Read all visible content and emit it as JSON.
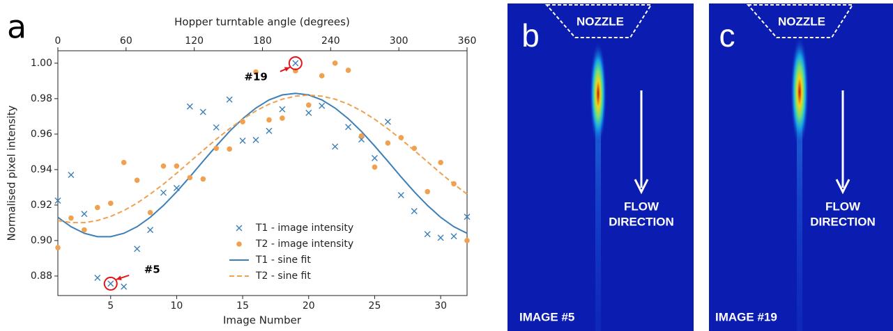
{
  "panel_label": "a",
  "chart_data": {
    "type": "scatter",
    "x_label": "Image Number",
    "y_label": "Normalised pixel intensity",
    "x2_label": "Hopper turntable angle (degrees)",
    "x": [
      1,
      2,
      3,
      4,
      5,
      6,
      7,
      8,
      9,
      10,
      11,
      12,
      13,
      14,
      15,
      16,
      17,
      18,
      19,
      20,
      21,
      22,
      23,
      24,
      25,
      26,
      27,
      28,
      29,
      30,
      31,
      32
    ],
    "xlim": [
      1,
      32
    ],
    "xticks": [
      5,
      10,
      15,
      20,
      25,
      30
    ],
    "x2lim": [
      0,
      360
    ],
    "x2ticks": [
      0,
      60,
      120,
      180,
      240,
      300,
      360
    ],
    "ylim": [
      0.869,
      1.007
    ],
    "yticks": [
      0.88,
      {
        "value": 0.9,
        "label": "0.90"
      },
      0.92,
      0.94,
      0.96,
      0.98,
      {
        "value": 1,
        "label": "1.00"
      }
    ],
    "legend": "lower center",
    "series": [
      {
        "name": "T1 - image intensity",
        "type": "scatter",
        "marker": "x",
        "color": "#3b7fb8",
        "values": [
          0.9225,
          0.937,
          0.915,
          0.879,
          0.8757,
          0.874,
          0.8953,
          0.906,
          0.927,
          0.9296,
          0.9756,
          0.9725,
          0.9638,
          0.9795,
          0.9563,
          0.9567,
          0.9618,
          0.974,
          1.0,
          0.972,
          0.976,
          0.953,
          0.964,
          0.957,
          0.9465,
          0.967,
          0.9256,
          0.9166,
          0.9036,
          0.9016,
          0.9024,
          0.9134
        ]
      },
      {
        "name": "T2 - image intensity",
        "type": "scatter",
        "marker": "o",
        "color": "#f0a04e",
        "values": [
          0.896,
          0.9127,
          0.906,
          0.9186,
          0.921,
          0.944,
          0.934,
          0.9158,
          0.942,
          0.942,
          0.9355,
          0.9347,
          0.952,
          0.9516,
          0.967,
          0.995,
          0.968,
          0.969,
          0.9957,
          0.9764,
          0.9929,
          1.0,
          0.996,
          0.959,
          0.9414,
          0.955,
          0.958,
          0.952,
          0.9276,
          0.944,
          0.932,
          0.9
        ]
      },
      {
        "name": "T1 - sine fit",
        "type": "line",
        "dash": false,
        "color": "#3b7fb8",
        "values": [
          0.9131,
          0.9078,
          0.9041,
          0.9022,
          0.9022,
          0.9041,
          0.9078,
          0.9131,
          0.9198,
          0.9275,
          0.9359,
          0.9447,
          0.9533,
          0.9615,
          0.9687,
          0.9747,
          0.9793,
          0.9821,
          0.983,
          0.9821,
          0.9793,
          0.9747,
          0.9687,
          0.9615,
          0.9533,
          0.9447,
          0.9359,
          0.9275,
          0.9198,
          0.9131,
          0.9078,
          0.9041
        ]
      },
      {
        "name": "T2 - sine fit",
        "type": "line",
        "dash": true,
        "color": "#f0a04e",
        "values": [
          0.9113,
          0.9101,
          0.9101,
          0.9113,
          0.9136,
          0.9169,
          0.9211,
          0.9262,
          0.9318,
          0.938,
          0.9444,
          0.9508,
          0.9571,
          0.963,
          0.9684,
          0.9731,
          0.9769,
          0.9797,
          0.9814,
          0.982,
          0.9814,
          0.9797,
          0.9769,
          0.9731,
          0.9684,
          0.963,
          0.9571,
          0.9508,
          0.9444,
          0.938,
          0.9318,
          0.9262
        ]
      }
    ],
    "annotations": [
      {
        "text": "#19",
        "x": 19,
        "y": 1.0
      },
      {
        "text": "#5",
        "x": 5,
        "y": 0.8757
      }
    ]
  },
  "images": [
    {
      "label": "b",
      "nozzle": "NOZZLE",
      "flow": [
        "FLOW",
        "DIRECTION"
      ],
      "caption": "IMAGE #5"
    },
    {
      "label": "c",
      "nozzle": "NOZZLE",
      "flow": [
        "FLOW",
        "DIRECTION"
      ],
      "caption": "IMAGE #19"
    }
  ]
}
